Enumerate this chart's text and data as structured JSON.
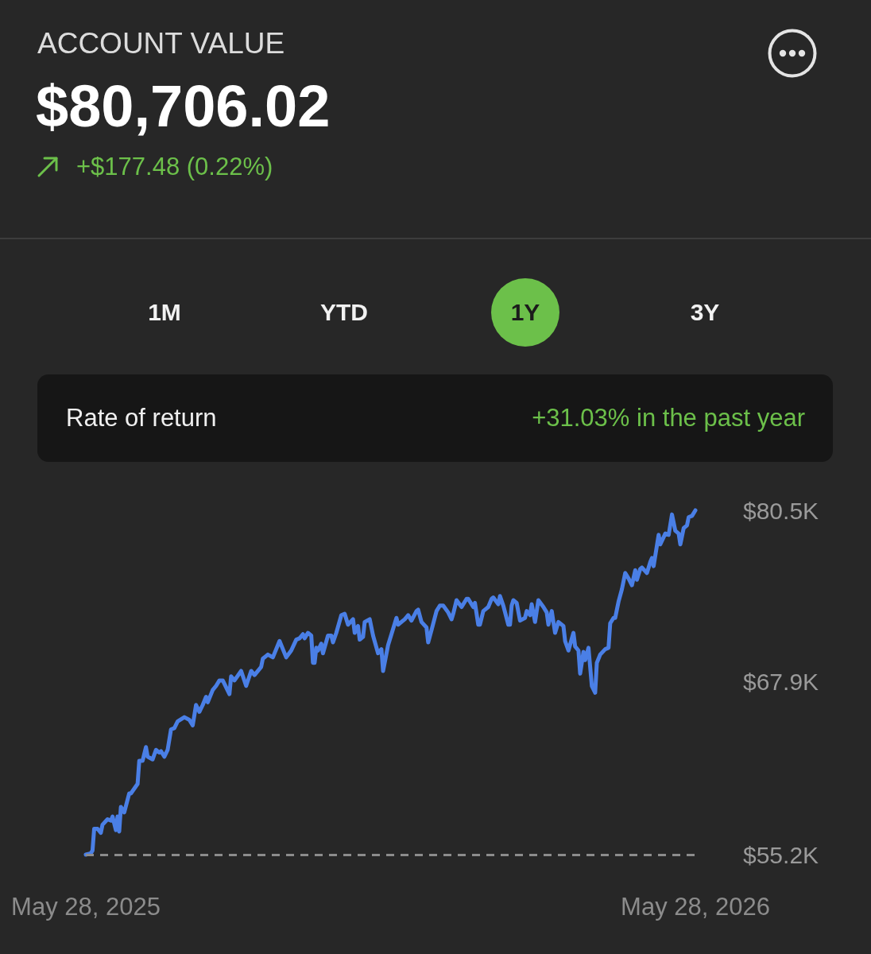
{
  "chart_data": {
    "type": "line",
    "title": "ACCOUNT VALUE",
    "subtitle": "$80,706.02",
    "annotations": [
      "+$177.48 (0.22%)",
      "1M",
      "YTD",
      "1Y",
      "3Y",
      "Rate of return",
      "+31.03% in the past year"
    ],
    "x": [
      "2025-05-28",
      "2025-05-31",
      "2025-06-01",
      "2025-06-02",
      "2025-06-04",
      "2025-06-06",
      "2025-06-07",
      "2025-06-10",
      "2025-06-12",
      "2025-06-13",
      "2025-06-15",
      "2025-06-16",
      "2025-06-17",
      "2025-06-18",
      "2025-06-20",
      "2025-06-23",
      "2025-06-24",
      "2025-06-28",
      "2025-06-29",
      "2025-07-01",
      "2025-07-03",
      "2025-07-04",
      "2025-07-07",
      "2025-07-09",
      "2025-07-11",
      "2025-07-12",
      "2025-07-14",
      "2025-07-16",
      "2025-07-18",
      "2025-07-20",
      "2025-07-22",
      "2025-07-26",
      "2025-07-29",
      "2025-07-31",
      "2025-08-02",
      "2025-08-04",
      "2025-08-06",
      "2025-08-08",
      "2025-08-09",
      "2025-08-12",
      "2025-08-14",
      "2025-08-16",
      "2025-08-18",
      "2025-08-22",
      "2025-08-23",
      "2025-08-25",
      "2025-08-29",
      "2025-09-01",
      "2025-09-04",
      "2025-09-06",
      "2025-09-10",
      "2025-09-11",
      "2025-09-13",
      "2025-09-14",
      "2025-09-17",
      "2025-09-21",
      "2025-09-25",
      "2025-09-28",
      "2025-10-01",
      "2025-10-03",
      "2025-10-05",
      "2025-10-06",
      "2025-10-08",
      "2025-10-10",
      "2025-10-11",
      "2025-10-12",
      "2025-10-13",
      "2025-10-14",
      "2025-10-16",
      "2025-10-17",
      "2025-10-20",
      "2025-10-22",
      "2025-10-23",
      "2025-10-25",
      "2025-10-28",
      "2025-10-30",
      "2025-11-01",
      "2025-11-04",
      "2025-11-05",
      "2025-11-07",
      "2025-11-08",
      "2025-11-10",
      "2025-11-11",
      "2025-11-14",
      "2025-11-16",
      "2025-11-19",
      "2025-11-21",
      "2025-11-22",
      "2025-11-25",
      "2025-11-28",
      "2025-11-30",
      "2025-12-01",
      "2025-12-05",
      "2025-12-07",
      "2025-12-09",
      "2025-12-12",
      "2025-12-13",
      "2025-12-15",
      "2025-12-18",
      "2025-12-19",
      "2025-12-21",
      "2025-12-24",
      "2025-12-26",
      "2025-12-28",
      "2025-12-31",
      "2026-01-02",
      "2026-01-03",
      "2026-01-05",
      "2026-01-08",
      "2026-01-11",
      "2026-01-12",
      "2026-01-15",
      "2026-01-16",
      "2026-01-18",
      "2026-01-19",
      "2026-01-21",
      "2026-01-24",
      "2026-01-26",
      "2026-01-27",
      "2026-01-30",
      "2026-01-31",
      "2026-02-02",
      "2026-02-05",
      "2026-02-06",
      "2026-02-07",
      "2026-02-08",
      "2026-02-10",
      "2026-02-12",
      "2026-02-15",
      "2026-02-16",
      "2026-02-18",
      "2026-02-19",
      "2026-02-21",
      "2026-02-23",
      "2026-02-26",
      "2026-02-28",
      "2026-03-01",
      "2026-03-03",
      "2026-03-05",
      "2026-03-07",
      "2026-03-10",
      "2026-03-11",
      "2026-03-13",
      "2026-03-16",
      "2026-03-17",
      "2026-03-19",
      "2026-03-20",
      "2026-03-22",
      "2026-03-23",
      "2026-03-25",
      "2026-03-27",
      "2026-03-29",
      "2026-03-30",
      "2026-04-01",
      "2026-04-04",
      "2026-04-06",
      "2026-04-07",
      "2026-04-09",
      "2026-04-10",
      "2026-04-12",
      "2026-04-14",
      "2026-04-16",
      "2026-04-18",
      "2026-04-20",
      "2026-04-22",
      "2026-04-23",
      "2026-04-25",
      "2026-04-26",
      "2026-04-29",
      "2026-05-01",
      "2026-05-02",
      "2026-05-03",
      "2026-05-06",
      "2026-05-07",
      "2026-05-10",
      "2026-05-12",
      "2026-05-14",
      "2026-05-16",
      "2026-05-18",
      "2026-05-19",
      "2026-05-21",
      "2026-05-23",
      "2026-05-24",
      "2026-05-26",
      "2026-05-28"
    ],
    "values": [
      55.2,
      55.3,
      55.5,
      57.1,
      57.1,
      56.8,
      57.4,
      57.8,
      57.7,
      58.0,
      57.0,
      58.0,
      56.9,
      58.7,
      58.3,
      59.7,
      59.7,
      60.4,
      62.1,
      62.1,
      63.1,
      62.4,
      62.2,
      62.9,
      62.7,
      62.8,
      62.4,
      62.9,
      64.4,
      64.5,
      65.0,
      65.3,
      65.1,
      64.7,
      66.2,
      65.7,
      66.2,
      66.8,
      66.4,
      67.3,
      67.6,
      68.0,
      68.0,
      67.0,
      68.3,
      68.0,
      68.7,
      67.6,
      68.7,
      68.4,
      69.0,
      69.6,
      69.8,
      69.9,
      69.7,
      70.9,
      69.7,
      70.2,
      71.0,
      71.1,
      71.4,
      71.1,
      71.5,
      71.3,
      69.3,
      69.3,
      70.4,
      70.2,
      70.7,
      70.0,
      71.3,
      71.3,
      70.8,
      71.5,
      72.8,
      72.9,
      72.1,
      72.5,
      71.5,
      72.0,
      71.0,
      71.2,
      72.3,
      72.5,
      71.3,
      70.0,
      70.3,
      68.7,
      70.6,
      71.8,
      72.6,
      72.1,
      72.5,
      72.8,
      72.4,
      73.1,
      73.2,
      72.3,
      71.9,
      70.8,
      71.7,
      73.1,
      73.5,
      73.5,
      73.0,
      72.5,
      72.9,
      73.9,
      73.4,
      74.0,
      74.0,
      73.4,
      73.7,
      72.1,
      72.1,
      73.1,
      73.4,
      74.0,
      74.1,
      73.6,
      74.2,
      73.5,
      72.1,
      72.1,
      73.5,
      73.9,
      73.7,
      72.4,
      72.6,
      73.1,
      72.8,
      73.6,
      72.3,
      73.9,
      73.4,
      73.0,
      72.1,
      73.1,
      71.5,
      72.3,
      72.0,
      70.9,
      70.2,
      71.5,
      70.5,
      70.2,
      68.5,
      70.1,
      69.5,
      70.4,
      67.6,
      67.1,
      69.3,
      69.9,
      70.3,
      70.4,
      72.2,
      72.6,
      72.6,
      73.8,
      74.7,
      75.9,
      75.5,
      75.0,
      76.1,
      75.4,
      76.2,
      76.3,
      75.9,
      76.7,
      77.0,
      76.4,
      78.7,
      78.0,
      78.8,
      78.7,
      80.2,
      79.0,
      78.8,
      78.0,
      79.2,
      79.4,
      80.0,
      80.1,
      80.5
    ],
    "color": "#4a7fe6",
    "xlim": [
      "2025-05-28",
      "2026-05-28"
    ],
    "xticks": [
      {
        "value": "2025-05-28",
        "label": "May 28, 2025"
      },
      {
        "value": "2026-05-28",
        "label": "May 28, 2026"
      }
    ],
    "ylim": [
      55.2,
      80.5
    ],
    "yticks": [
      {
        "value": 55.2,
        "label": "$55.2K"
      },
      {
        "value": 67.9,
        "label": "$67.9K"
      },
      {
        "value": 80.5,
        "label": "$80.5K"
      }
    ],
    "ref_lines": [
      {
        "axis": "y",
        "value": 55.2,
        "color": "#8c8c8c",
        "line_style": "dashed"
      }
    ],
    "grid": false
  }
}
